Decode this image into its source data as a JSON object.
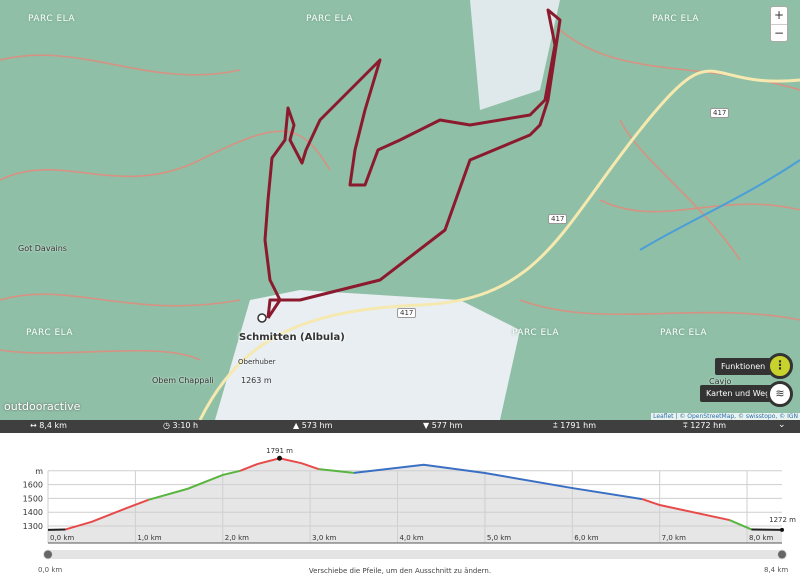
{
  "map": {
    "region_labels": [
      "PARC ELA",
      "PARC ELA",
      "PARC ELA",
      "PARC ELA",
      "PARC ELA",
      "PARC ELA"
    ],
    "town": "Schmitten (Albula)",
    "places": [
      "Got Davains",
      "Obem Chappali",
      "Oberhuber",
      "1263 m",
      "Cavjo"
    ],
    "roads": [
      "417",
      "417",
      "417"
    ],
    "logo": "outdooractive",
    "attribution": "Leaflet | © OpenStreetMap, © swisstopo, © IGN",
    "zoom_in": "+",
    "zoom_out": "−",
    "functions_label": "Funktionen",
    "layers_label": "Karten und Wege",
    "route_color": "#8b1a2e",
    "accent": "#c8d22c"
  },
  "stats": {
    "distance": "8,4 km",
    "duration": "3:10 h",
    "ascent": "573 hm",
    "descent": "577 hm",
    "max_alt": "1791 hm",
    "min_alt": "1272 hm"
  },
  "chart_data": {
    "type": "area",
    "ylabel": "m",
    "yticks": [
      "1300",
      "1400",
      "1500",
      "1600"
    ],
    "xticks": [
      "0,0 km",
      "1,0 km",
      "2,0 km",
      "3,0 km",
      "4,0 km",
      "5,0 km",
      "6,0 km",
      "7,0 km",
      "8,0 km"
    ],
    "xlim": [
      0,
      8.4
    ],
    "ylim": [
      1180,
      1791
    ],
    "max_label": "1791 m",
    "end_label": "1272 m",
    "points": [
      [
        0,
        1272
      ],
      [
        0.2,
        1275
      ],
      [
        0.5,
        1330
      ],
      [
        0.9,
        1430
      ],
      [
        1.15,
        1490
      ],
      [
        1.6,
        1570
      ],
      [
        2.0,
        1670
      ],
      [
        2.2,
        1700
      ],
      [
        2.4,
        1750
      ],
      [
        2.65,
        1791
      ],
      [
        2.9,
        1755
      ],
      [
        3.1,
        1712
      ],
      [
        3.5,
        1685
      ],
      [
        4.3,
        1744
      ],
      [
        5.0,
        1684
      ],
      [
        6.0,
        1575
      ],
      [
        6.8,
        1495
      ],
      [
        7.0,
        1452
      ],
      [
        7.8,
        1343
      ],
      [
        8.05,
        1275
      ],
      [
        8.4,
        1272
      ]
    ],
    "segments": [
      {
        "from": 0,
        "to": 0.2,
        "color": "#222222"
      },
      {
        "from": 0.2,
        "to": 1.15,
        "color": "#e84a4a"
      },
      {
        "from": 1.15,
        "to": 2.2,
        "color": "#5ab540"
      },
      {
        "from": 2.2,
        "to": 3.1,
        "color": "#e84a4a"
      },
      {
        "from": 3.1,
        "to": 3.5,
        "color": "#5ab540"
      },
      {
        "from": 3.5,
        "to": 6.8,
        "color": "#3a6fc4"
      },
      {
        "from": 6.8,
        "to": 7.8,
        "color": "#e84a4a"
      },
      {
        "from": 7.8,
        "to": 8.05,
        "color": "#5ab540"
      },
      {
        "from": 8.05,
        "to": 8.4,
        "color": "#222222"
      }
    ],
    "range_start": "0,0 km",
    "range_end": "8,4 km",
    "hint": "Verschiebe die Pfeile, um den Ausschnitt zu ändern."
  }
}
